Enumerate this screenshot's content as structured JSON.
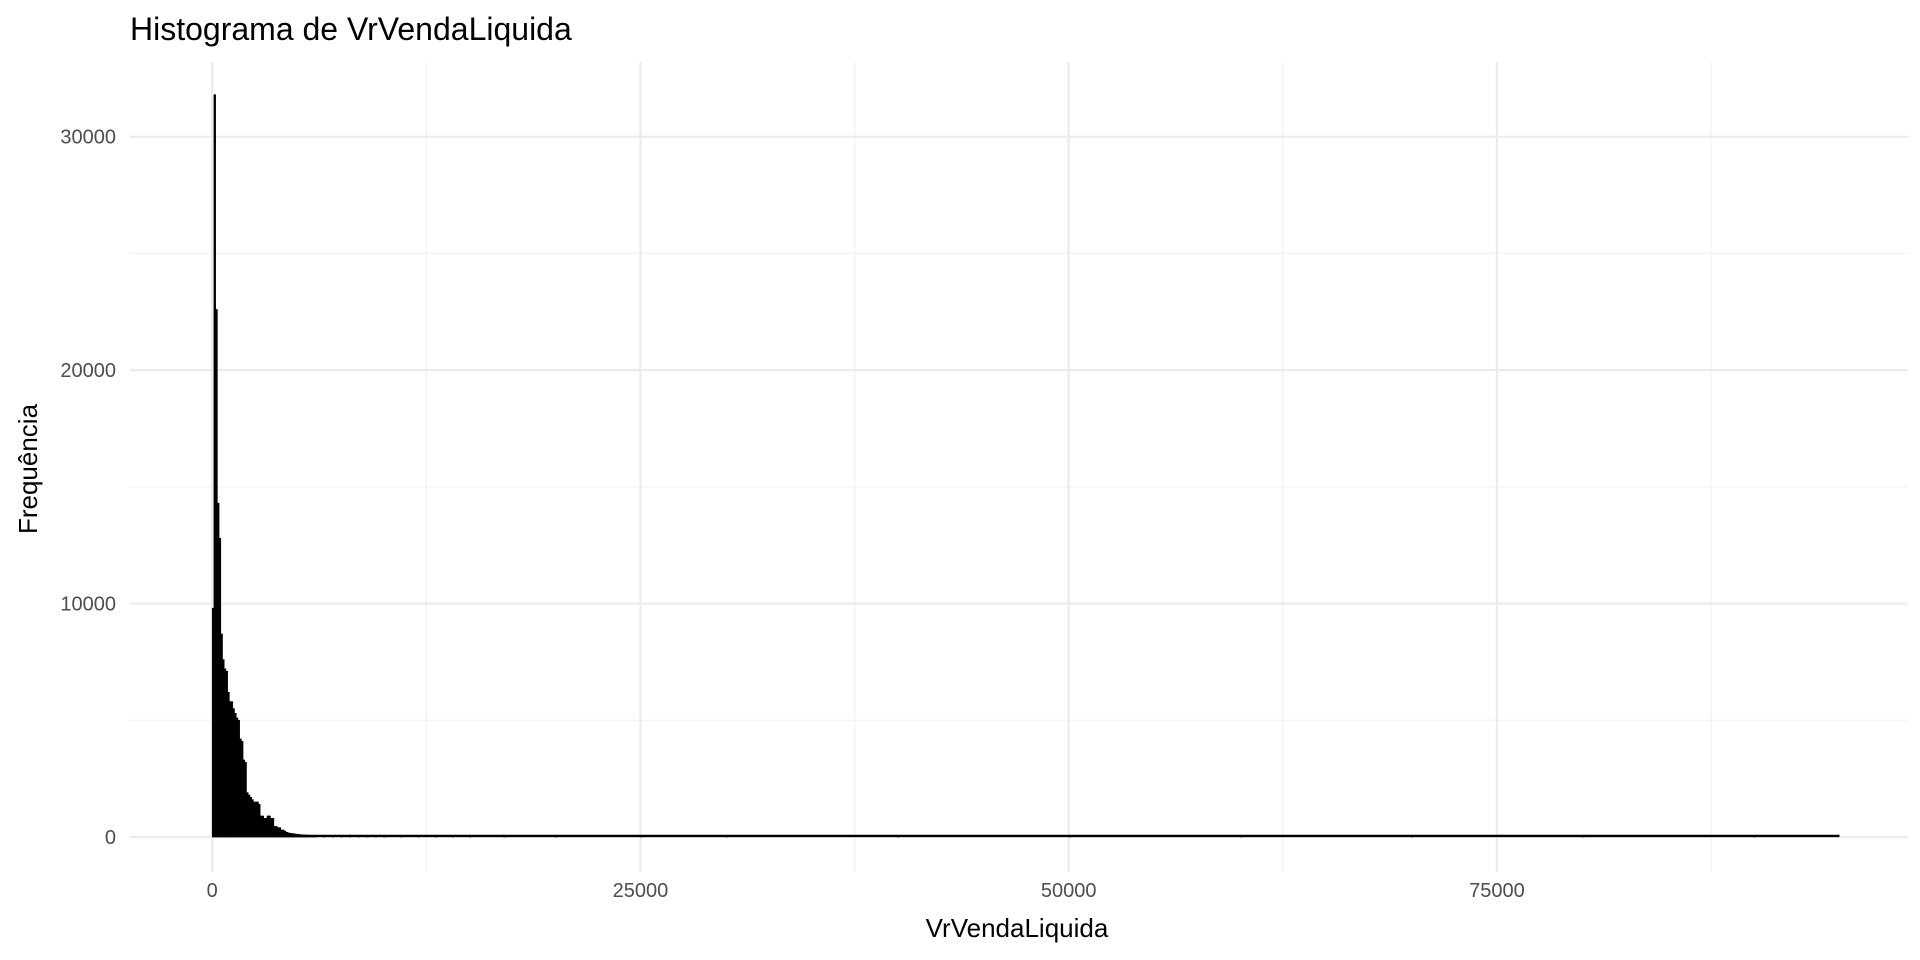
{
  "chart_data": {
    "type": "bar",
    "title": "Histograma de VrVendaLiquida",
    "xlabel": "VrVendaLiquida",
    "ylabel": "Frequência",
    "xlim": [
      -4800,
      99000
    ],
    "ylim": [
      -1500,
      33200
    ],
    "x_ticks": [
      0,
      25000,
      50000,
      75000
    ],
    "x_tick_labels": [
      "0",
      "25000",
      "50000",
      "75000"
    ],
    "y_ticks": [
      0,
      10000,
      20000,
      30000
    ],
    "y_tick_labels": [
      "0",
      "10000",
      "20000",
      "30000"
    ],
    "grid": true,
    "bar_color": "#000000",
    "bin_width": 100,
    "bins": [
      {
        "x": 0,
        "count": 9800
      },
      {
        "x": 100,
        "count": 31800
      },
      {
        "x": 200,
        "count": 22600
      },
      {
        "x": 300,
        "count": 14300
      },
      {
        "x": 400,
        "count": 12800
      },
      {
        "x": 500,
        "count": 8700
      },
      {
        "x": 600,
        "count": 7600
      },
      {
        "x": 700,
        "count": 7200
      },
      {
        "x": 800,
        "count": 7100
      },
      {
        "x": 900,
        "count": 6200
      },
      {
        "x": 1000,
        "count": 5800
      },
      {
        "x": 1100,
        "count": 5800
      },
      {
        "x": 1200,
        "count": 5500
      },
      {
        "x": 1300,
        "count": 5300
      },
      {
        "x": 1400,
        "count": 5100
      },
      {
        "x": 1500,
        "count": 5000
      },
      {
        "x": 1600,
        "count": 4200
      },
      {
        "x": 1700,
        "count": 4100
      },
      {
        "x": 1800,
        "count": 3300
      },
      {
        "x": 1900,
        "count": 3200
      },
      {
        "x": 2000,
        "count": 1900
      },
      {
        "x": 2100,
        "count": 1800
      },
      {
        "x": 2200,
        "count": 1700
      },
      {
        "x": 2300,
        "count": 1600
      },
      {
        "x": 2400,
        "count": 1500
      },
      {
        "x": 2500,
        "count": 1500
      },
      {
        "x": 2600,
        "count": 1500
      },
      {
        "x": 2700,
        "count": 1400
      },
      {
        "x": 2800,
        "count": 900
      },
      {
        "x": 2900,
        "count": 900
      },
      {
        "x": 3000,
        "count": 800
      },
      {
        "x": 3100,
        "count": 800
      },
      {
        "x": 3200,
        "count": 900
      },
      {
        "x": 3300,
        "count": 900
      },
      {
        "x": 3400,
        "count": 800
      },
      {
        "x": 3500,
        "count": 800
      },
      {
        "x": 3600,
        "count": 450
      },
      {
        "x": 3700,
        "count": 450
      },
      {
        "x": 3800,
        "count": 400
      },
      {
        "x": 3900,
        "count": 400
      },
      {
        "x": 4000,
        "count": 300
      },
      {
        "x": 4100,
        "count": 300
      },
      {
        "x": 4200,
        "count": 250
      },
      {
        "x": 4300,
        "count": 200
      },
      {
        "x": 4400,
        "count": 180
      },
      {
        "x": 4500,
        "count": 160
      },
      {
        "x": 4600,
        "count": 150
      },
      {
        "x": 4700,
        "count": 140
      },
      {
        "x": 4800,
        "count": 130
      },
      {
        "x": 4900,
        "count": 120
      },
      {
        "x": 5000,
        "count": 110
      },
      {
        "x": 5100,
        "count": 100
      },
      {
        "x": 5200,
        "count": 95
      },
      {
        "x": 5300,
        "count": 90
      },
      {
        "x": 5400,
        "count": 85
      },
      {
        "x": 5500,
        "count": 80
      },
      {
        "x": 5600,
        "count": 75
      },
      {
        "x": 5700,
        "count": 70
      },
      {
        "x": 5800,
        "count": 70
      },
      {
        "x": 5900,
        "count": 65
      },
      {
        "x": 6000,
        "count": 60
      },
      {
        "x": 6500,
        "count": 50
      },
      {
        "x": 7000,
        "count": 45
      },
      {
        "x": 7500,
        "count": 40
      },
      {
        "x": 8000,
        "count": 80
      },
      {
        "x": 8500,
        "count": 60
      },
      {
        "x": 9000,
        "count": 50
      },
      {
        "x": 9500,
        "count": 40
      },
      {
        "x": 10000,
        "count": 35
      },
      {
        "x": 11000,
        "count": 30
      },
      {
        "x": 12000,
        "count": 25
      },
      {
        "x": 13000,
        "count": 20
      },
      {
        "x": 14000,
        "count": 18
      },
      {
        "x": 15000,
        "count": 15
      },
      {
        "x": 17000,
        "count": 12
      },
      {
        "x": 20000,
        "count": 10
      },
      {
        "x": 25000,
        "count": 8
      },
      {
        "x": 30000,
        "count": 6
      },
      {
        "x": 40000,
        "count": 5
      },
      {
        "x": 50000,
        "count": 4
      },
      {
        "x": 60000,
        "count": 3
      },
      {
        "x": 70000,
        "count": 3
      },
      {
        "x": 80000,
        "count": 2
      },
      {
        "x": 90000,
        "count": 2
      }
    ],
    "baseline": {
      "x_start": 0,
      "x_end": 95000
    }
  }
}
